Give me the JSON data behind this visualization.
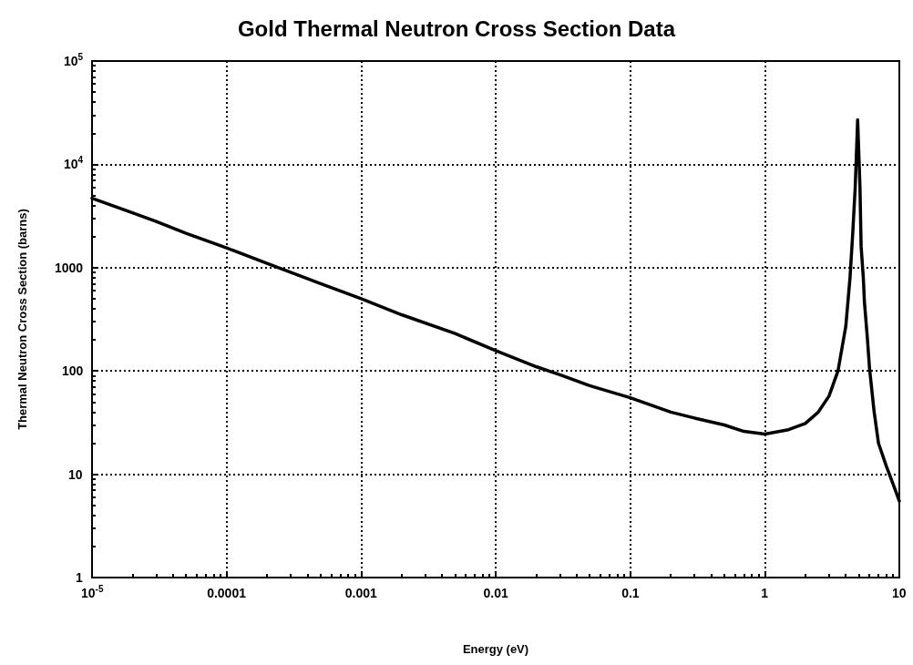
{
  "chart_data": {
    "type": "line",
    "title": "Gold Thermal Neutron Cross Section Data",
    "xlabel": "Energy (eV)",
    "ylabel": "Thermal Neutron Cross Section (barns)",
    "x": [
      1e-05,
      2e-05,
      3e-05,
      5e-05,
      0.0001,
      0.0002,
      0.0005,
      0.001,
      0.002,
      0.005,
      0.01,
      0.02,
      0.03,
      0.05,
      0.1,
      0.2,
      0.3,
      0.5,
      0.7,
      1,
      1.5,
      2,
      2.5,
      3,
      3.5,
      4,
      4.3,
      4.5,
      4.7,
      4.9,
      5.1,
      5.2,
      5.4,
      5.5,
      5.8,
      6,
      6.5,
      7,
      8,
      9,
      10
    ],
    "series": [
      {
        "color": "#000000",
        "values": [
          4700,
          3400,
          2800,
          2150,
          1550,
          1100,
          700,
          500,
          350,
          230,
          157,
          110,
          92,
          72,
          55,
          40,
          35,
          30,
          26,
          24.5,
          27,
          31,
          40,
          57,
          100,
          270,
          800,
          2100,
          6000,
          27000,
          6000,
          1600,
          800,
          470,
          200,
          107,
          40,
          20,
          12,
          8,
          5.5
        ]
      }
    ],
    "log": "xy",
    "xlim": [
      1e-05,
      10
    ],
    "ylim": [
      1,
      100000
    ],
    "xticks": [
      {
        "value": 1e-05,
        "label": "10$^{-5}$"
      },
      0.0001,
      0.001,
      0.01,
      0.1,
      1,
      10
    ],
    "yticks": [
      1,
      10,
      100,
      1000,
      {
        "value": 10000,
        "label": "10$^{4}$"
      },
      {
        "value": 100000,
        "label": "10$^{5}$"
      }
    ],
    "grid": true,
    "marker": "none",
    "line_style": "solid"
  }
}
